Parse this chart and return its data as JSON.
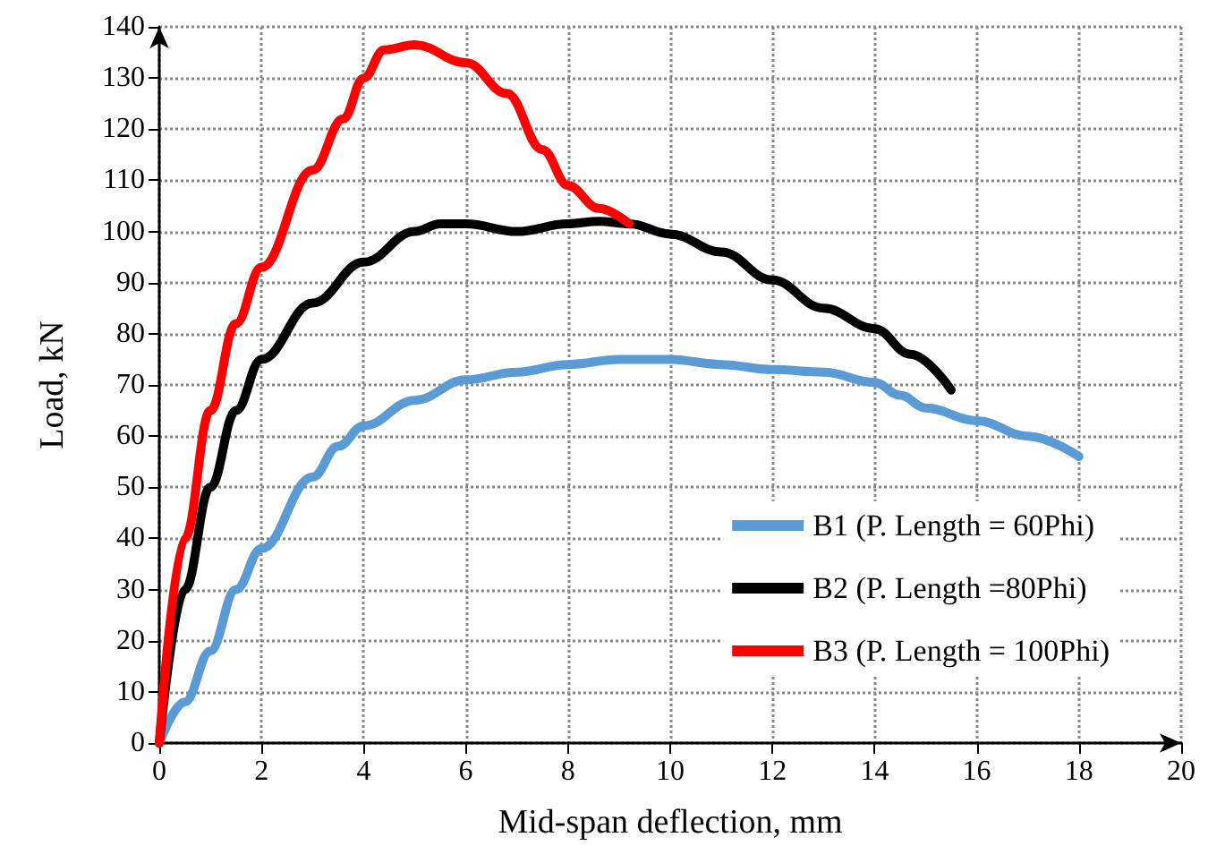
{
  "chart_data": {
    "type": "line",
    "xlabel": "Mid-span deflection, mm",
    "ylabel": "Load, kN",
    "xlim": [
      0,
      20
    ],
    "xticks": [
      0,
      2,
      4,
      6,
      8,
      10,
      12,
      14,
      16,
      18,
      20
    ],
    "ylim": [
      0,
      140
    ],
    "yticks": [
      0,
      10,
      20,
      30,
      40,
      50,
      60,
      70,
      80,
      90,
      100,
      110,
      120,
      130,
      140
    ],
    "grid": true,
    "legend": "right",
    "marker": "none",
    "line_style": "solid",
    "series": [
      {
        "name": "B1 (P. Length = 60Phi)",
        "color": "#5b9bd5",
        "x": [
          0,
          0.5,
          1,
          1.5,
          2,
          3,
          3.5,
          4,
          5,
          6,
          7,
          8,
          9,
          10,
          11,
          12,
          13,
          14,
          14.5,
          15,
          16,
          17,
          18
        ],
        "values": [
          0,
          8,
          18,
          30,
          38,
          52,
          58,
          62,
          67,
          71,
          72.5,
          74,
          75,
          75,
          74,
          73,
          72.5,
          70.5,
          68,
          65.5,
          63,
          60,
          56
        ]
      },
      {
        "name": "B2 (P. Length =80Phi)",
        "color": "#000000",
        "x": [
          0,
          0.5,
          1,
          1.5,
          2,
          3,
          4,
          5,
          5.5,
          6,
          7,
          8,
          8.6,
          9.2,
          10,
          11,
          12,
          13,
          14,
          14.7,
          15.5
        ],
        "values": [
          0,
          30,
          50,
          65,
          75,
          86,
          94,
          100,
          101.5,
          101.5,
          100,
          101.5,
          102,
          101.5,
          99.5,
          96,
          90.5,
          85,
          81,
          76,
          69
        ]
      },
      {
        "name": "B3 (P. Length = 100Phi)",
        "color": "#ff0000",
        "x": [
          0,
          0.5,
          1,
          1.5,
          2,
          3,
          3.6,
          4,
          4.4,
          5,
          6,
          6.8,
          7.5,
          8,
          8.6,
          9.2
        ],
        "values": [
          0,
          40,
          65,
          82,
          93,
          112,
          122,
          130,
          135.5,
          136.5,
          133,
          127,
          116,
          109,
          104.5,
          101.5
        ]
      }
    ]
  }
}
